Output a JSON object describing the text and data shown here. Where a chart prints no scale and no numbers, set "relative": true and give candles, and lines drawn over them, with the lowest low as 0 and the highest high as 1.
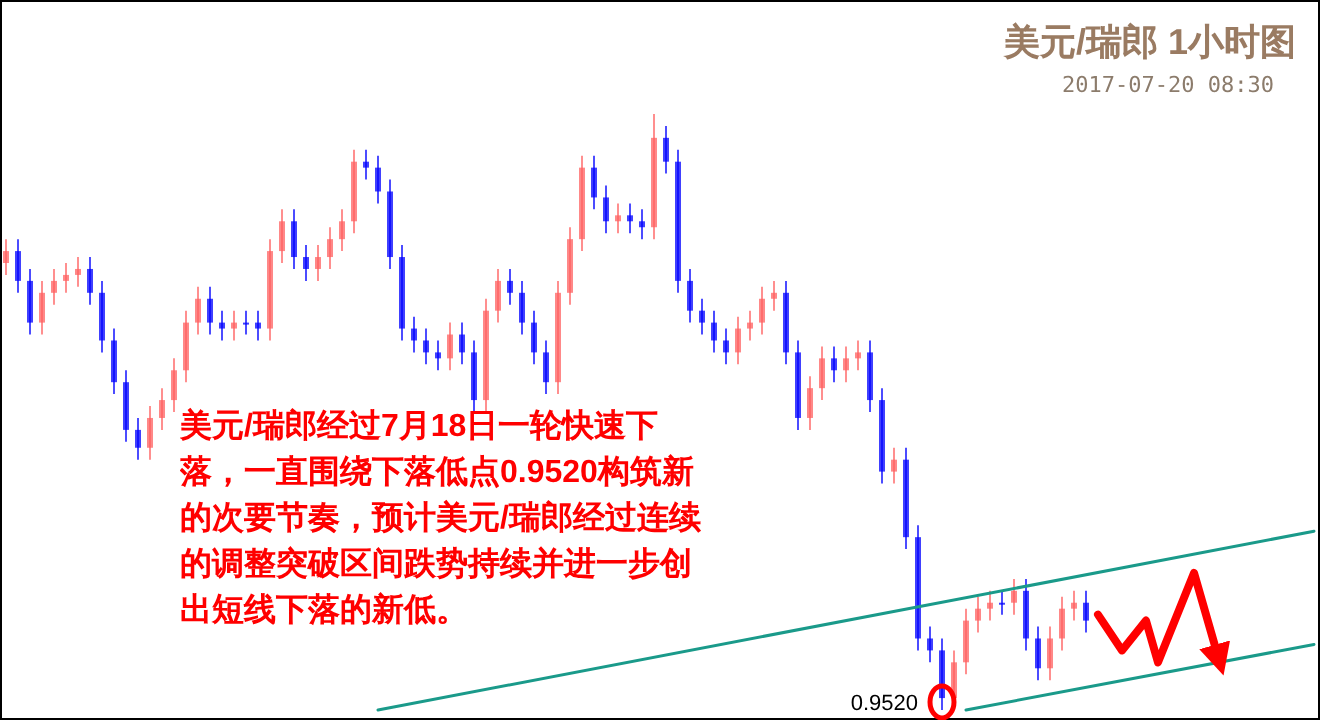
{
  "chart_data": {
    "type": "candlestick",
    "title": "美元/瑞郎 1小时图",
    "subtitle": "2017-07-20 08:30",
    "relative": true,
    "categories": [
      null,
      null,
      null,
      null,
      null,
      null,
      null,
      null,
      null,
      null,
      null,
      null,
      null,
      null,
      null,
      null,
      null,
      null,
      null,
      null,
      null,
      null,
      null,
      null,
      null,
      null,
      null,
      null,
      null,
      null,
      null,
      null,
      null,
      null,
      null,
      null,
      null,
      null,
      null,
      null,
      null,
      null,
      null,
      null,
      null,
      null,
      null,
      null,
      null,
      null,
      null,
      null,
      null,
      null,
      null,
      null,
      null,
      null,
      null,
      null,
      null,
      null,
      null,
      null,
      null,
      null,
      null,
      null,
      null,
      null,
      null,
      null,
      null,
      null,
      null,
      null,
      null,
      null,
      null,
      null,
      null,
      null,
      null,
      null,
      null,
      null,
      null,
      null,
      null,
      null,
      null,
      null,
      null,
      null,
      null,
      null,
      null,
      null,
      null,
      null,
      null,
      null,
      null,
      null,
      null,
      null,
      null,
      null,
      null,
      null
    ],
    "ohlc": [
      [
        0.75,
        0.79,
        0.73,
        0.77
      ],
      [
        0.77,
        0.79,
        0.7,
        0.72
      ],
      [
        0.72,
        0.74,
        0.63,
        0.65
      ],
      [
        0.65,
        0.72,
        0.63,
        0.7
      ],
      [
        0.7,
        0.74,
        0.68,
        0.72
      ],
      [
        0.72,
        0.75,
        0.7,
        0.73
      ],
      [
        0.73,
        0.76,
        0.71,
        0.74
      ],
      [
        0.74,
        0.76,
        0.68,
        0.7
      ],
      [
        0.7,
        0.72,
        0.6,
        0.62
      ],
      [
        0.62,
        0.64,
        0.53,
        0.55
      ],
      [
        0.55,
        0.57,
        0.45,
        0.47
      ],
      [
        0.47,
        0.49,
        0.42,
        0.44
      ],
      [
        0.44,
        0.51,
        0.42,
        0.49
      ],
      [
        0.49,
        0.54,
        0.47,
        0.52
      ],
      [
        0.52,
        0.59,
        0.5,
        0.57
      ],
      [
        0.57,
        0.67,
        0.55,
        0.65
      ],
      [
        0.65,
        0.71,
        0.63,
        0.69
      ],
      [
        0.69,
        0.71,
        0.63,
        0.65
      ],
      [
        0.65,
        0.67,
        0.62,
        0.64
      ],
      [
        0.64,
        0.67,
        0.62,
        0.65
      ],
      [
        0.65,
        0.67,
        0.63,
        0.65
      ],
      [
        0.65,
        0.67,
        0.62,
        0.64
      ],
      [
        0.64,
        0.79,
        0.62,
        0.77
      ],
      [
        0.77,
        0.84,
        0.75,
        0.82
      ],
      [
        0.82,
        0.84,
        0.74,
        0.76
      ],
      [
        0.76,
        0.78,
        0.72,
        0.74
      ],
      [
        0.74,
        0.78,
        0.72,
        0.76
      ],
      [
        0.76,
        0.81,
        0.74,
        0.79
      ],
      [
        0.79,
        0.84,
        0.77,
        0.82
      ],
      [
        0.82,
        0.94,
        0.8,
        0.92
      ],
      [
        0.92,
        0.94,
        0.89,
        0.91
      ],
      [
        0.91,
        0.93,
        0.85,
        0.87
      ],
      [
        0.87,
        0.89,
        0.74,
        0.76
      ],
      [
        0.76,
        0.78,
        0.62,
        0.64
      ],
      [
        0.64,
        0.66,
        0.6,
        0.62
      ],
      [
        0.62,
        0.64,
        0.58,
        0.6
      ],
      [
        0.6,
        0.62,
        0.57,
        0.59
      ],
      [
        0.59,
        0.65,
        0.57,
        0.63
      ],
      [
        0.63,
        0.65,
        0.58,
        0.6
      ],
      [
        0.6,
        0.62,
        0.5,
        0.52
      ],
      [
        0.52,
        0.69,
        0.5,
        0.67
      ],
      [
        0.67,
        0.74,
        0.65,
        0.72
      ],
      [
        0.72,
        0.74,
        0.68,
        0.7
      ],
      [
        0.7,
        0.72,
        0.63,
        0.65
      ],
      [
        0.65,
        0.67,
        0.58,
        0.6
      ],
      [
        0.6,
        0.62,
        0.53,
        0.55
      ],
      [
        0.55,
        0.72,
        0.53,
        0.7
      ],
      [
        0.7,
        0.81,
        0.68,
        0.79
      ],
      [
        0.79,
        0.93,
        0.77,
        0.91
      ],
      [
        0.91,
        0.93,
        0.84,
        0.86
      ],
      [
        0.86,
        0.88,
        0.8,
        0.82
      ],
      [
        0.82,
        0.85,
        0.8,
        0.83
      ],
      [
        0.83,
        0.85,
        0.8,
        0.82
      ],
      [
        0.82,
        0.84,
        0.79,
        0.81
      ],
      [
        0.81,
        1.0,
        0.79,
        0.96
      ],
      [
        0.96,
        0.98,
        0.9,
        0.92
      ],
      [
        0.92,
        0.94,
        0.7,
        0.72
      ],
      [
        0.72,
        0.74,
        0.65,
        0.67
      ],
      [
        0.67,
        0.69,
        0.63,
        0.65
      ],
      [
        0.65,
        0.67,
        0.6,
        0.62
      ],
      [
        0.62,
        0.64,
        0.58,
        0.6
      ],
      [
        0.6,
        0.66,
        0.58,
        0.64
      ],
      [
        0.64,
        0.67,
        0.62,
        0.65
      ],
      [
        0.65,
        0.71,
        0.63,
        0.69
      ],
      [
        0.69,
        0.72,
        0.67,
        0.7
      ],
      [
        0.7,
        0.72,
        0.58,
        0.6
      ],
      [
        0.6,
        0.62,
        0.47,
        0.49
      ],
      [
        0.49,
        0.56,
        0.47,
        0.54
      ],
      [
        0.54,
        0.61,
        0.52,
        0.59
      ],
      [
        0.59,
        0.61,
        0.55,
        0.57
      ],
      [
        0.57,
        0.61,
        0.55,
        0.59
      ],
      [
        0.59,
        0.62,
        0.57,
        0.6
      ],
      [
        0.6,
        0.62,
        0.5,
        0.52
      ],
      [
        0.52,
        0.54,
        0.38,
        0.4
      ],
      [
        0.4,
        0.44,
        0.38,
        0.42
      ],
      [
        0.42,
        0.44,
        0.27,
        0.29
      ],
      [
        0.29,
        0.31,
        0.1,
        0.12
      ],
      [
        0.12,
        0.14,
        0.08,
        0.1
      ],
      [
        0.1,
        0.12,
        0.0,
        0.02
      ],
      [
        0.02,
        0.1,
        0.01,
        0.08
      ],
      [
        0.08,
        0.17,
        0.06,
        0.15
      ],
      [
        0.15,
        0.19,
        0.13,
        0.17
      ],
      [
        0.17,
        0.2,
        0.15,
        0.18
      ],
      [
        0.18,
        0.2,
        0.16,
        0.18
      ],
      [
        0.18,
        0.22,
        0.16,
        0.2
      ],
      [
        0.2,
        0.22,
        0.1,
        0.12
      ],
      [
        0.12,
        0.14,
        0.05,
        0.07
      ],
      [
        0.07,
        0.14,
        0.05,
        0.12
      ],
      [
        0.12,
        0.19,
        0.1,
        0.17
      ],
      [
        0.17,
        0.2,
        0.15,
        0.18
      ],
      [
        0.18,
        0.2,
        0.13,
        0.15
      ],
      null,
      null,
      null,
      null,
      null,
      null,
      null,
      null,
      null,
      null,
      null,
      null,
      null,
      null,
      null,
      null,
      null,
      null,
      null
    ],
    "colors": [
      "#ff6060",
      "#0000ff",
      "#0000ff",
      "#ff6060",
      "#ff6060",
      "#ff6060",
      "#ff6060",
      "#0000ff",
      "#0000ff",
      "#0000ff",
      "#0000ff",
      "#0000ff",
      "#ff6060",
      "#ff6060",
      "#ff6060",
      "#ff6060",
      "#ff6060",
      "#0000ff",
      "#0000ff",
      "#ff6060",
      "#0000ff",
      "#0000ff",
      "#ff6060",
      "#ff6060",
      "#0000ff",
      "#0000ff",
      "#ff6060",
      "#ff6060",
      "#ff6060",
      "#ff6060",
      "#0000ff",
      "#0000ff",
      "#0000ff",
      "#0000ff",
      "#0000ff",
      "#0000ff",
      "#0000ff",
      "#ff6060",
      "#0000ff",
      "#0000ff",
      "#ff6060",
      "#ff6060",
      "#0000ff",
      "#0000ff",
      "#0000ff",
      "#0000ff",
      "#ff6060",
      "#ff6060",
      "#ff6060",
      "#0000ff",
      "#0000ff",
      "#ff6060",
      "#0000ff",
      "#0000ff",
      "#ff6060",
      "#0000ff",
      "#0000ff",
      "#0000ff",
      "#0000ff",
      "#0000ff",
      "#0000ff",
      "#ff6060",
      "#ff6060",
      "#ff6060",
      "#ff6060",
      "#0000ff",
      "#0000ff",
      "#ff6060",
      "#ff6060",
      "#0000ff",
      "#ff6060",
      "#ff6060",
      "#0000ff",
      "#0000ff",
      "#ff6060",
      "#0000ff",
      "#0000ff",
      "#0000ff",
      "#0000ff",
      "#ff6060",
      "#ff6060",
      "#ff6060",
      "#ff6060",
      "#0000ff",
      "#ff6060",
      "#0000ff",
      "#0000ff",
      "#ff6060",
      "#ff6060",
      "#ff6060",
      "#0000ff",
      null,
      null,
      null,
      null,
      null,
      null,
      null,
      null,
      null,
      null,
      null,
      null,
      null,
      null,
      null,
      null,
      null,
      null,
      null
    ],
    "series": [
      {
        "type": "line",
        "color": "#1a9a8a",
        "values": [
          null,
          null,
          null,
          null,
          null,
          null,
          null,
          null,
          null,
          null,
          null,
          null,
          null,
          null,
          null,
          null,
          null,
          null,
          null,
          null,
          null,
          null,
          null,
          null,
          null,
          null,
          null,
          null,
          null,
          null,
          null,
          0,
          null,
          null,
          null,
          null,
          null,
          null,
          null,
          null,
          null,
          null,
          null,
          null,
          null,
          null,
          null,
          null,
          null,
          null,
          null,
          null,
          null,
          null,
          null,
          null,
          null,
          null,
          null,
          null,
          null,
          null,
          null,
          null,
          null,
          null,
          null,
          null,
          null,
          null,
          null,
          null,
          null,
          null,
          null,
          null,
          null,
          null,
          null,
          null,
          null,
          null,
          null,
          null,
          null,
          null,
          null,
          null,
          null,
          null,
          null,
          null,
          null,
          null,
          null,
          null,
          null,
          null,
          null,
          null,
          null,
          null,
          null,
          null,
          null,
          null,
          null,
          null,
          null,
          0.3
        ]
      },
      {
        "type": "line",
        "color": "#1a9a8a",
        "values": [
          null,
          null,
          null,
          null,
          null,
          null,
          null,
          null,
          null,
          null,
          null,
          null,
          null,
          null,
          null,
          null,
          null,
          null,
          null,
          null,
          null,
          null,
          null,
          null,
          null,
          null,
          null,
          null,
          null,
          null,
          null,
          null,
          null,
          null,
          null,
          null,
          null,
          null,
          null,
          null,
          null,
          null,
          null,
          null,
          null,
          null,
          null,
          null,
          null,
          null,
          null,
          null,
          null,
          null,
          null,
          null,
          null,
          null,
          null,
          null,
          null,
          null,
          null,
          null,
          null,
          null,
          null,
          null,
          null,
          null,
          null,
          null,
          null,
          null,
          null,
          null,
          null,
          null,
          null,
          null,
          0,
          null,
          null,
          null,
          null,
          null,
          null,
          null,
          null,
          null,
          null,
          null,
          null,
          null,
          null,
          null,
          null,
          null,
          null,
          null,
          null,
          null,
          null,
          null,
          null,
          null,
          null,
          null,
          null,
          0.11
        ]
      },
      {
        "type": "line",
        "color": "#ff0000",
        "line_style": "solid",
        "values": [
          null,
          null,
          null,
          null,
          null,
          null,
          null,
          null,
          null,
          null,
          null,
          null,
          null,
          null,
          null,
          null,
          null,
          null,
          null,
          null,
          null,
          null,
          null,
          null,
          null,
          null,
          null,
          null,
          null,
          null,
          null,
          null,
          null,
          null,
          null,
          null,
          null,
          null,
          null,
          null,
          null,
          null,
          null,
          null,
          null,
          null,
          null,
          null,
          null,
          null,
          null,
          null,
          null,
          null,
          null,
          null,
          null,
          null,
          null,
          null,
          null,
          null,
          null,
          null,
          null,
          null,
          null,
          null,
          null,
          null,
          null,
          null,
          null,
          null,
          null,
          null,
          null,
          null,
          null,
          null,
          null,
          null,
          null,
          null,
          null,
          null,
          null,
          null,
          null,
          null,
          null,
          0.16,
          null,
          0.1,
          null,
          0.15,
          0.08,
          null,
          null,
          0.23,
          null,
          0.09,
          null,
          null,
          null,
          null,
          null,
          null,
          null,
          null
        ]
      }
    ],
    "annotations": [
      "美元/瑞郎经过7月18日一轮快速下落，一直围绕下落低点0.9520构筑新的次要节奏，预计美元/瑞郎经过连续的调整突破区间跌势持续并进一步创出短线下落的新低。",
      "0.9520"
    ]
  }
}
